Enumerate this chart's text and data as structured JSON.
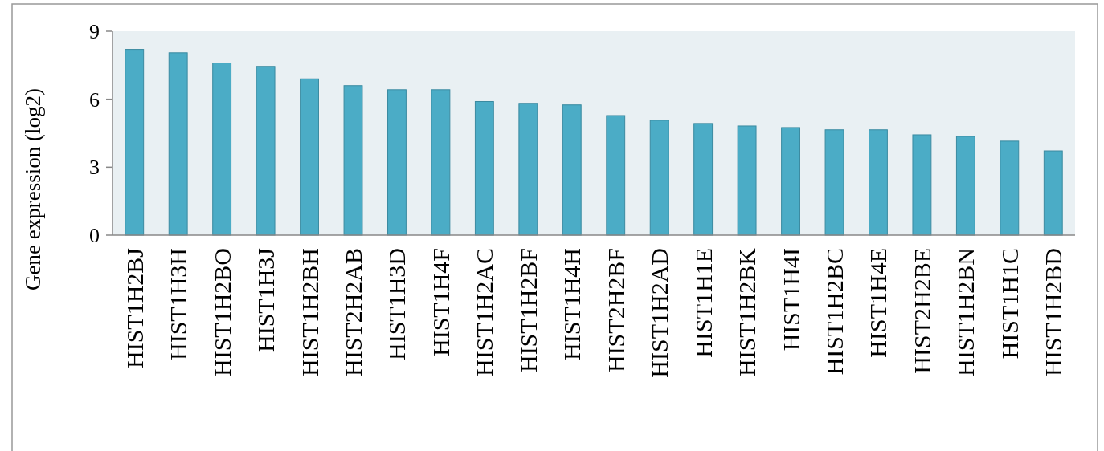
{
  "chart_data": {
    "type": "bar",
    "ylabel": "Gene expression (log2)",
    "categories": [
      "HIST1H2BJ",
      "HIST1H3H",
      "HIST1H2BO",
      "HIST1H3J",
      "HIST1H2BH",
      "HIST2H2AB",
      "HIST1H3D",
      "HIST1H4F",
      "HIST1H2AC",
      "HIST1H2BF",
      "HIST1H4H",
      "HIST2H2BF",
      "HIST1H2AD",
      "HIST1H1E",
      "HIST1H2BK",
      "HIST1H4I",
      "HIST1H2BC",
      "HIST1H4E",
      "HIST2H2BE",
      "HIST1H2BN",
      "HIST1H1C",
      "HIST1H2BD"
    ],
    "values": [
      8.2,
      8.05,
      7.6,
      7.45,
      6.9,
      6.6,
      6.42,
      6.42,
      5.9,
      5.82,
      5.75,
      5.28,
      5.07,
      4.93,
      4.82,
      4.75,
      4.65,
      4.65,
      4.43,
      4.36,
      4.15,
      3.72
    ],
    "color": "#4bacc6",
    "ylim": [
      0,
      9
    ],
    "yticks": [
      0,
      3,
      6,
      9
    ],
    "grid": false
  }
}
